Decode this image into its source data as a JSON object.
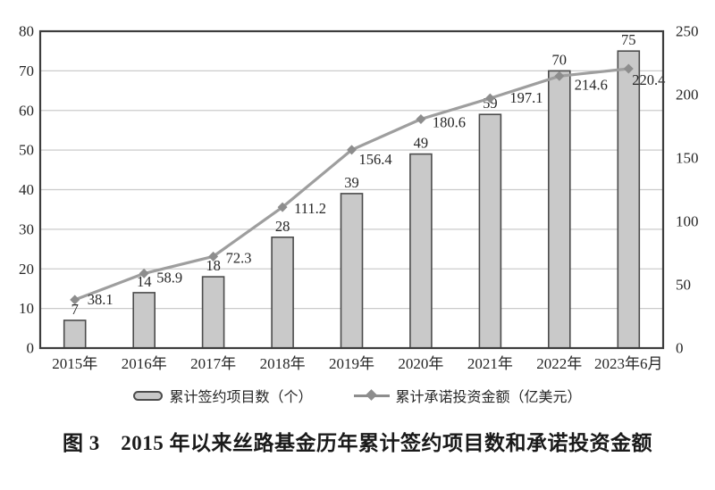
{
  "figure": {
    "caption": "图 3　2015 年以来丝路基金历年累计签约项目数和承诺投资金额"
  },
  "chart_data": {
    "type": "bar",
    "combo": "bar+line dual axis",
    "categories": [
      "2015年",
      "2016年",
      "2017年",
      "2018年",
      "2019年",
      "2020年",
      "2021年",
      "2022年",
      "2023年6月"
    ],
    "series": [
      {
        "name": "累计签约项目数（个）",
        "type": "bar",
        "axis": "left",
        "values": [
          7,
          14,
          18,
          28,
          39,
          49,
          59,
          70,
          75
        ]
      },
      {
        "name": "累计承诺投资金额（亿美元）",
        "type": "line",
        "axis": "right",
        "values": [
          38.1,
          58.9,
          72.3,
          111.2,
          156.4,
          180.6,
          197.1,
          214.6,
          220.4
        ]
      }
    ],
    "left_axis": {
      "min": 0,
      "max": 80,
      "tick_labels": [
        "0",
        "10",
        "20",
        "30",
        "40",
        "50",
        "60",
        "70",
        "80"
      ]
    },
    "right_axis": {
      "min": 0,
      "max": 250,
      "tick_labels": [
        "0",
        "50",
        "100",
        "150",
        "200",
        "250"
      ]
    },
    "grid": true,
    "legend_position": "bottom",
    "colors": {
      "bar_fill": "#c9c9c9",
      "bar_stroke": "#4c4c4c",
      "line": "#9e9e9e",
      "marker": "#8d8d8d",
      "grid": "#cbcbcb",
      "frame": "#3d3d3d",
      "text": "#262626"
    }
  }
}
